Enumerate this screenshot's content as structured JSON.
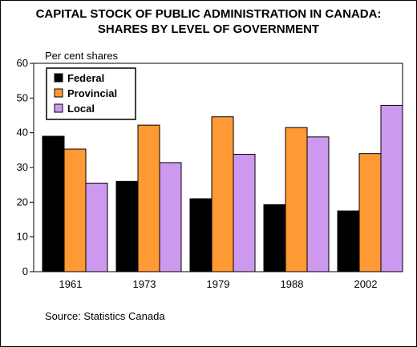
{
  "title_lines": [
    "CAPITAL STOCK OF PUBLIC ADMINISTRATION IN CANADA:",
    "SHARES BY LEVEL OF GOVERNMENT"
  ],
  "source": "Source: Statistics Canada",
  "chart_data": {
    "type": "bar",
    "title": "CAPITAL STOCK OF PUBLIC ADMINISTRATION IN CANADA: SHARES BY LEVEL OF GOVERNMENT",
    "ylabel": "Per cent shares",
    "xlabel": "",
    "categories": [
      "1961",
      "1973",
      "1979",
      "1988",
      "2002"
    ],
    "ylim": [
      0,
      60
    ],
    "yticks": [
      0,
      10,
      20,
      30,
      40,
      50,
      60
    ],
    "grid": false,
    "legend_position": "top-left",
    "series": [
      {
        "name": "Federal",
        "color": "#000000",
        "values": [
          39,
          26,
          21,
          19.3,
          17.5
        ]
      },
      {
        "name": "Provincial",
        "color": "#ff9933",
        "values": [
          35.3,
          42.2,
          44.6,
          41.5,
          34
        ]
      },
      {
        "name": "Local",
        "color": "#cc99ee",
        "values": [
          25.5,
          31.4,
          33.8,
          38.8,
          47.9
        ]
      }
    ]
  }
}
